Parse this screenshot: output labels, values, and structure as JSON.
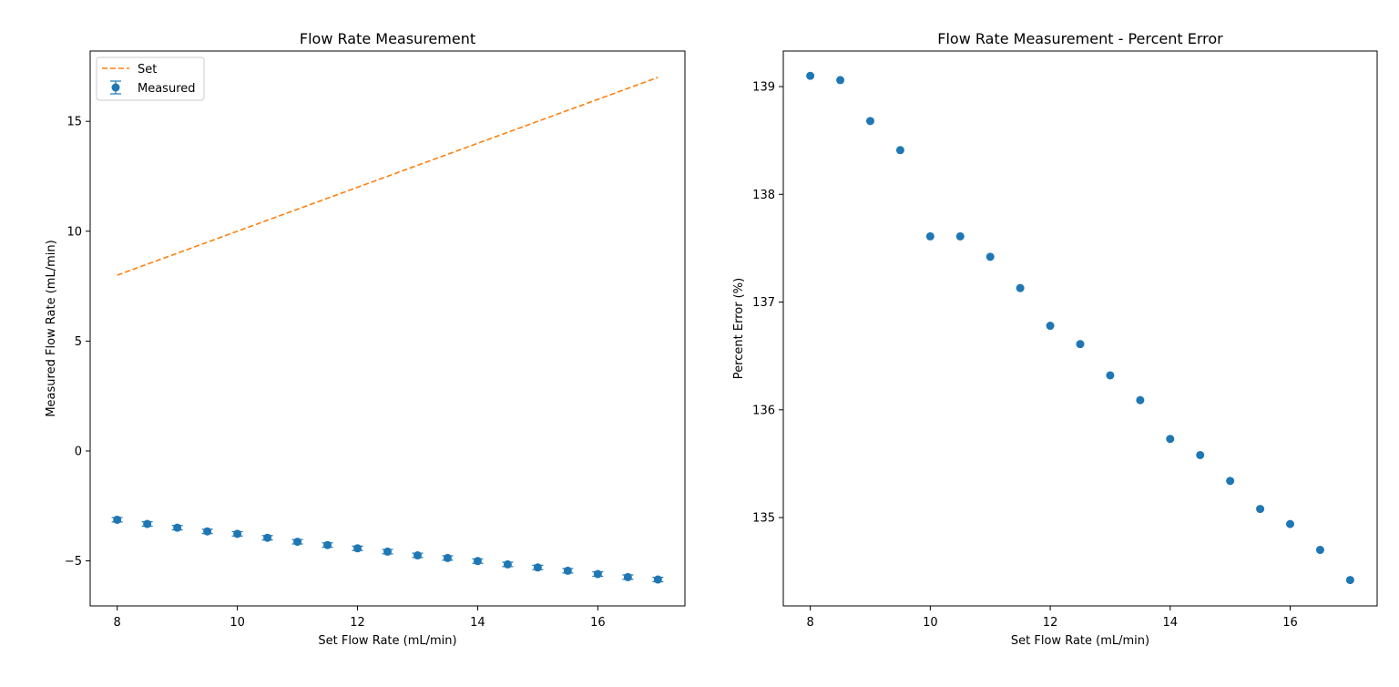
{
  "colors": {
    "measured": "#1f77b4",
    "set": "#ff7f0e",
    "axes": "#000000",
    "background": "#ffffff"
  },
  "chart_data": [
    {
      "type": "scatter",
      "title": "Flow Rate Measurement",
      "xlabel": "Set Flow Rate (mL/min)",
      "ylabel": "Measured Flow Rate (mL/min)",
      "xlim": [
        7.55,
        17.45
      ],
      "ylim": [
        -7.05,
        18.2
      ],
      "xticks": [
        8,
        10,
        12,
        14,
        16
      ],
      "xtick_labels": [
        "8",
        "10",
        "12",
        "14",
        "16"
      ],
      "yticks": [
        -5,
        0,
        5,
        10,
        15
      ],
      "ytick_labels": [
        "−5",
        "0",
        "5",
        "10",
        "15"
      ],
      "grid": false,
      "legend": {
        "placement": "upper-left",
        "entries": [
          "Set",
          "Measured"
        ]
      },
      "series": [
        {
          "name": "Set",
          "style": "dashed-line",
          "x": [
            8,
            17
          ],
          "y": [
            8,
            17
          ]
        },
        {
          "name": "Measured",
          "style": "errorbar-points",
          "x": [
            8,
            8.5,
            9,
            9.5,
            10,
            10.5,
            11,
            11.5,
            12,
            12.5,
            13,
            13.5,
            14,
            14.5,
            15,
            15.5,
            16,
            16.5,
            17
          ],
          "y": [
            -3.13,
            -3.32,
            -3.49,
            -3.66,
            -3.77,
            -3.95,
            -4.13,
            -4.28,
            -4.43,
            -4.58,
            -4.75,
            -4.87,
            -5.01,
            -5.16,
            -5.3,
            -5.45,
            -5.6,
            -5.74,
            -5.85
          ],
          "yerr": 0.1
        }
      ]
    },
    {
      "type": "scatter",
      "title": "Flow Rate Measurement - Percent Error",
      "xlabel": "Set Flow Rate (mL/min)",
      "ylabel": "Percent Error (%)",
      "xlim": [
        7.55,
        17.45
      ],
      "ylim": [
        134.18,
        139.33
      ],
      "xticks": [
        8,
        10,
        12,
        14,
        16
      ],
      "xtick_labels": [
        "8",
        "10",
        "12",
        "14",
        "16"
      ],
      "yticks": [
        135,
        136,
        137,
        138,
        139
      ],
      "ytick_labels": [
        "135",
        "136",
        "137",
        "138",
        "139"
      ],
      "grid": false,
      "series": [
        {
          "style": "points",
          "x": [
            8,
            8.5,
            9,
            9.5,
            10,
            10.5,
            11,
            11.5,
            12,
            12.5,
            13,
            13.5,
            14,
            14.5,
            15,
            15.5,
            16,
            16.5,
            17
          ],
          "y": [
            139.1,
            139.06,
            138.68,
            138.41,
            137.61,
            137.61,
            137.42,
            137.13,
            136.78,
            136.61,
            136.32,
            136.09,
            135.73,
            135.58,
            135.34,
            135.08,
            134.94,
            134.7,
            134.42
          ]
        }
      ]
    }
  ]
}
